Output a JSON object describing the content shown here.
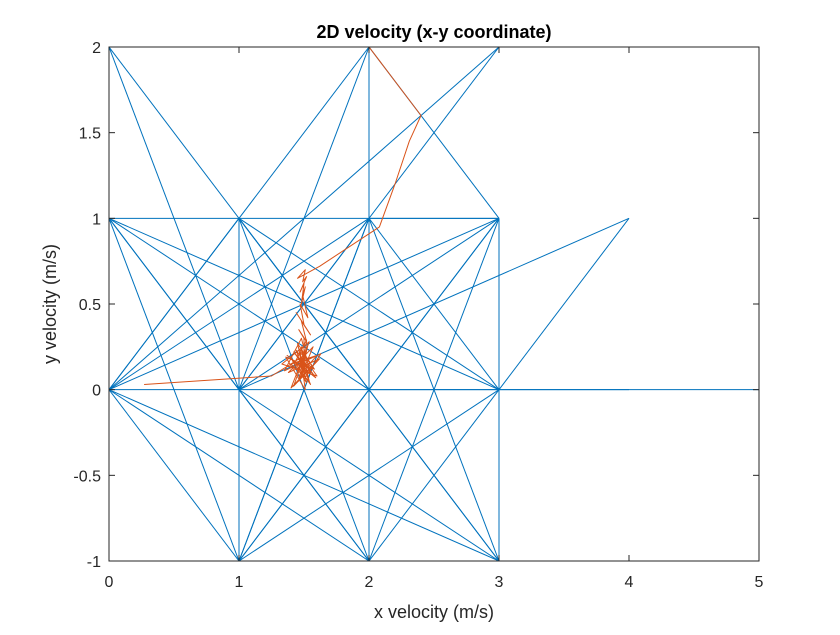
{
  "chart_data": {
    "type": "line",
    "title": "2D velocity (x-y coordinate)",
    "xlabel": "x velocity (m/s)",
    "ylabel": "y velocity (m/s)",
    "xlim": [
      0,
      5
    ],
    "ylim": [
      -1,
      2
    ],
    "xticks": [
      0,
      1,
      2,
      3,
      4,
      5
    ],
    "xtick_labels": [
      "0",
      "1",
      "2",
      "3",
      "4",
      "5"
    ],
    "yticks": [
      -1,
      -0.5,
      0,
      0.5,
      1,
      1.5,
      2
    ],
    "ytick_labels": [
      "-1",
      "-0.5",
      "0",
      "0.5",
      "1",
      "1.5",
      "2"
    ],
    "grid": false,
    "series": [
      {
        "color": "#0072BD",
        "segments": [
          [
            [
              0,
              2
            ],
            [
              0,
              1
            ]
          ],
          [
            [
              0,
              2
            ],
            [
              1,
              0
            ]
          ],
          [
            [
              0,
              2
            ],
            [
              2,
              0
            ]
          ],
          [
            [
              0,
              1
            ],
            [
              3,
              1
            ]
          ],
          [
            [
              0,
              1
            ],
            [
              1,
              0
            ]
          ],
          [
            [
              0,
              1
            ],
            [
              2,
              0
            ]
          ],
          [
            [
              0,
              1
            ],
            [
              3,
              0
            ]
          ],
          [
            [
              0,
              1
            ],
            [
              1,
              -1
            ]
          ],
          [
            [
              0,
              1
            ],
            [
              2,
              -1
            ]
          ],
          [
            [
              0,
              0
            ],
            [
              5,
              0
            ]
          ],
          [
            [
              0,
              0
            ],
            [
              1,
              1
            ]
          ],
          [
            [
              0,
              0
            ],
            [
              2,
              1
            ]
          ],
          [
            [
              0,
              0
            ],
            [
              3,
              1
            ]
          ],
          [
            [
              0,
              0
            ],
            [
              1,
              -1
            ]
          ],
          [
            [
              0,
              0
            ],
            [
              2,
              -1
            ]
          ],
          [
            [
              0,
              0
            ],
            [
              3,
              -1
            ]
          ],
          [
            [
              0,
              0
            ],
            [
              2,
              2
            ]
          ],
          [
            [
              0,
              0
            ],
            [
              3,
              2
            ]
          ],
          [
            [
              1,
              1
            ],
            [
              1,
              -1
            ]
          ],
          [
            [
              1,
              1
            ],
            [
              2,
              0
            ]
          ],
          [
            [
              1,
              1
            ],
            [
              3,
              0
            ]
          ],
          [
            [
              1,
              1
            ],
            [
              2,
              -1
            ]
          ],
          [
            [
              1,
              1
            ],
            [
              3,
              -1
            ]
          ],
          [
            [
              1,
              0
            ],
            [
              2,
              1
            ]
          ],
          [
            [
              1,
              0
            ],
            [
              3,
              1
            ]
          ],
          [
            [
              1,
              0
            ],
            [
              4,
              1
            ]
          ],
          [
            [
              1,
              0
            ],
            [
              2,
              -1
            ]
          ],
          [
            [
              1,
              0
            ],
            [
              3,
              -1
            ]
          ],
          [
            [
              1,
              0
            ],
            [
              3,
              2
            ]
          ],
          [
            [
              1,
              -1
            ],
            [
              3,
              -1
            ]
          ],
          [
            [
              1,
              -1
            ],
            [
              2,
              1
            ]
          ],
          [
            [
              1,
              -1
            ],
            [
              3,
              1
            ]
          ],
          [
            [
              1,
              -1
            ],
            [
              2,
              0
            ]
          ],
          [
            [
              1,
              -1
            ],
            [
              3,
              0
            ]
          ],
          [
            [
              2,
              2
            ],
            [
              3,
              2
            ]
          ],
          [
            [
              2,
              2
            ],
            [
              2,
              -1
            ]
          ],
          [
            [
              2,
              2
            ],
            [
              3,
              1
            ]
          ],
          [
            [
              2,
              2
            ],
            [
              1,
              0
            ]
          ],
          [
            [
              2,
              1
            ],
            [
              3,
              1
            ]
          ],
          [
            [
              2,
              1
            ],
            [
              3,
              0
            ]
          ],
          [
            [
              2,
              1
            ],
            [
              3,
              -1
            ]
          ],
          [
            [
              2,
              1
            ],
            [
              1,
              -1
            ]
          ],
          [
            [
              2,
              0
            ],
            [
              3,
              1
            ]
          ],
          [
            [
              2,
              0
            ],
            [
              3,
              -1
            ]
          ],
          [
            [
              2,
              0
            ],
            [
              4,
              0
            ]
          ],
          [
            [
              2,
              -1
            ],
            [
              3,
              1
            ]
          ],
          [
            [
              2,
              -1
            ],
            [
              3,
              0
            ]
          ],
          [
            [
              3,
              1
            ],
            [
              3,
              -1
            ]
          ],
          [
            [
              3,
              0
            ],
            [
              4,
              1
            ]
          ],
          [
            [
              0,
              -1
            ],
            [
              3,
              -1
            ]
          ],
          [
            [
              0,
              -1
            ],
            [
              0,
              2
            ]
          ],
          [
            [
              1,
              1
            ],
            [
              1,
              -1
            ]
          ]
        ]
      },
      {
        "color": "#D95319",
        "x": [
          0.27,
          1.25,
          1.38,
          1.5,
          1.46,
          1.57,
          1.38,
          1.62,
          1.42,
          1.54,
          1.33,
          1.6,
          1.47,
          1.51,
          1.36,
          1.58,
          1.45,
          1.52,
          1.41,
          1.55,
          1.48,
          1.35,
          1.63,
          1.5,
          1.46,
          1.56,
          1.4,
          1.53,
          1.49,
          1.37,
          1.59,
          1.44,
          1.5,
          1.47,
          1.55,
          1.43,
          1.52,
          1.5,
          1.46,
          1.6,
          1.4,
          1.54,
          1.48,
          1.51,
          1.45,
          1.57,
          1.42,
          1.5,
          1.5,
          1.46,
          1.52,
          1.48,
          1.55,
          1.44,
          1.5,
          1.47,
          1.53,
          1.49,
          1.51,
          1.48,
          1.5,
          1.47,
          1.52,
          1.49,
          1.51,
          1.45,
          1.62,
          2.08,
          2.2,
          2.31,
          2.4,
          2.0
        ],
        "y": [
          0.03,
          0.08,
          0.14,
          0.2,
          0.05,
          0.25,
          0.1,
          0.18,
          0.02,
          0.28,
          0.15,
          0.08,
          0.22,
          0.0,
          0.19,
          0.12,
          0.27,
          0.04,
          0.17,
          0.09,
          0.3,
          0.11,
          0.21,
          0.06,
          0.24,
          0.14,
          0.01,
          0.26,
          0.13,
          0.2,
          0.07,
          0.23,
          0.1,
          0.18,
          0.03,
          0.16,
          0.29,
          0.12,
          0.08,
          0.2,
          0.15,
          0.05,
          0.25,
          0.11,
          0.19,
          0.09,
          0.22,
          0.14,
          0.3,
          0.35,
          0.28,
          0.4,
          0.32,
          0.45,
          0.38,
          0.5,
          0.42,
          0.55,
          0.6,
          0.5,
          0.62,
          0.57,
          0.66,
          0.63,
          0.7,
          0.65,
          0.72,
          0.95,
          1.2,
          1.45,
          1.6,
          2.0
        ]
      }
    ]
  }
}
